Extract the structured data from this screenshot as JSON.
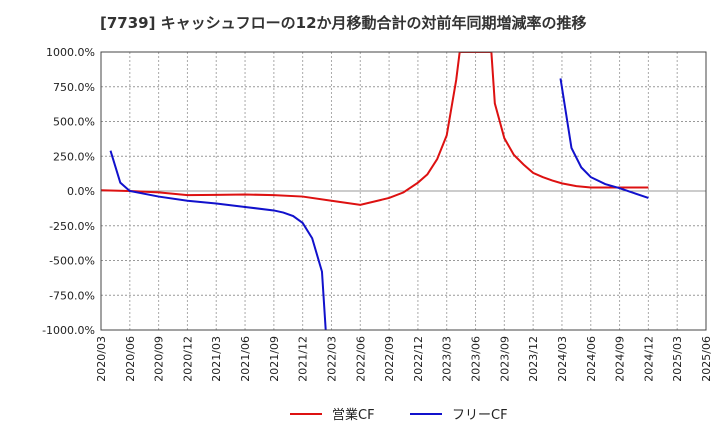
{
  "chart_data": {
    "type": "line",
    "title": "[7739]  キャッシュフローの12か月移動合計の対前年同期増減率の推移",
    "xlabel": "",
    "ylabel": "",
    "ylim": [
      -1000,
      1000
    ],
    "ytick_values": [
      1000,
      750,
      500,
      250,
      0,
      -250,
      -500,
      -750,
      -1000
    ],
    "ytick_labels": [
      "1000.0%",
      "750.0%",
      "500.0%",
      "250.0%",
      "0.0%",
      "-250.0%",
      "-500.0%",
      "-750.0%",
      "-1000.0%"
    ],
    "x_categories": [
      "2020/03",
      "2020/06",
      "2020/09",
      "2020/12",
      "2021/03",
      "2021/06",
      "2021/09",
      "2021/12",
      "2022/03",
      "2022/06",
      "2022/09",
      "2022/12",
      "2023/03",
      "2023/06",
      "2023/09",
      "2023/12",
      "2024/03",
      "2024/06",
      "2024/09",
      "2024/12",
      "2025/03",
      "2025/06"
    ],
    "series": [
      {
        "name": "営業CF",
        "color": "#dd1111",
        "points": [
          [
            0,
            5
          ],
          [
            1,
            0
          ],
          [
            2,
            -10
          ],
          [
            3,
            -30
          ],
          [
            4,
            -28
          ],
          [
            5,
            -25
          ],
          [
            6,
            -30
          ],
          [
            7,
            -40
          ],
          [
            8,
            -70
          ],
          [
            9,
            -100
          ],
          [
            10,
            -50
          ],
          [
            10.5,
            -10
          ],
          [
            11,
            60
          ],
          [
            11.33,
            120
          ],
          [
            11.67,
            230
          ],
          [
            12,
            400
          ],
          [
            12.33,
            800
          ],
          [
            12.45,
            1000
          ],
          [
            13.55,
            1000
          ],
          [
            13.67,
            630
          ],
          [
            14,
            380
          ],
          [
            14.33,
            260
          ],
          [
            14.67,
            190
          ],
          [
            15,
            130
          ],
          [
            15.33,
            100
          ],
          [
            15.67,
            75
          ],
          [
            16,
            55
          ],
          [
            16.5,
            35
          ],
          [
            17,
            25
          ],
          [
            18,
            25
          ],
          [
            19,
            25
          ]
        ]
      },
      {
        "name": "フリーCF",
        "color": "#1111cc",
        "points": [
          [
            0.33,
            290
          ],
          [
            0.67,
            60
          ],
          [
            1,
            0
          ],
          [
            2,
            -40
          ],
          [
            3,
            -70
          ],
          [
            4,
            -90
          ],
          [
            5,
            -115
          ],
          [
            6,
            -140
          ],
          [
            6.33,
            -155
          ],
          [
            6.67,
            -180
          ],
          [
            7,
            -230
          ],
          [
            7.33,
            -340
          ],
          [
            7.67,
            -580
          ],
          [
            7.8,
            -1000
          ],
          [
            15.95,
            810
          ],
          [
            16.33,
            310
          ],
          [
            16.67,
            170
          ],
          [
            17,
            100
          ],
          [
            17.5,
            50
          ],
          [
            18,
            20
          ],
          [
            18.5,
            -15
          ],
          [
            19,
            -50
          ]
        ]
      }
    ],
    "legend": [
      "営業CF",
      "フリーCF"
    ]
  }
}
